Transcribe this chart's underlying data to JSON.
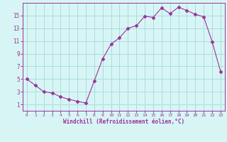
{
  "x": [
    0,
    1,
    2,
    3,
    4,
    5,
    6,
    7,
    8,
    9,
    10,
    11,
    12,
    13,
    14,
    15,
    16,
    17,
    18,
    19,
    20,
    21,
    22,
    23
  ],
  "y": [
    5,
    4,
    3,
    2.8,
    2.2,
    1.8,
    1.5,
    1.2,
    4.7,
    8.2,
    10.5,
    11.5,
    13,
    13.4,
    14.9,
    14.7,
    16.2,
    15.3,
    16.3,
    15.8,
    15.2,
    14.8,
    10.9,
    6.2
  ],
  "line_color": "#993399",
  "marker": "D",
  "marker_size": 2.5,
  "bg_color": "#d8f5f5",
  "grid_color": "#aadddd",
  "xlabel": "Windchill (Refroidissement éolien,°C)",
  "ylabel": "",
  "yticks": [
    1,
    3,
    5,
    7,
    9,
    11,
    13,
    15
  ],
  "xticks": [
    0,
    1,
    2,
    3,
    4,
    5,
    6,
    7,
    8,
    9,
    10,
    11,
    12,
    13,
    14,
    15,
    16,
    17,
    18,
    19,
    20,
    21,
    22,
    23
  ],
  "ylim": [
    0,
    17
  ],
  "xlim": [
    -0.5,
    23.5
  ],
  "axis_color": "#993399",
  "tick_color": "#993399",
  "label_color": "#993399"
}
